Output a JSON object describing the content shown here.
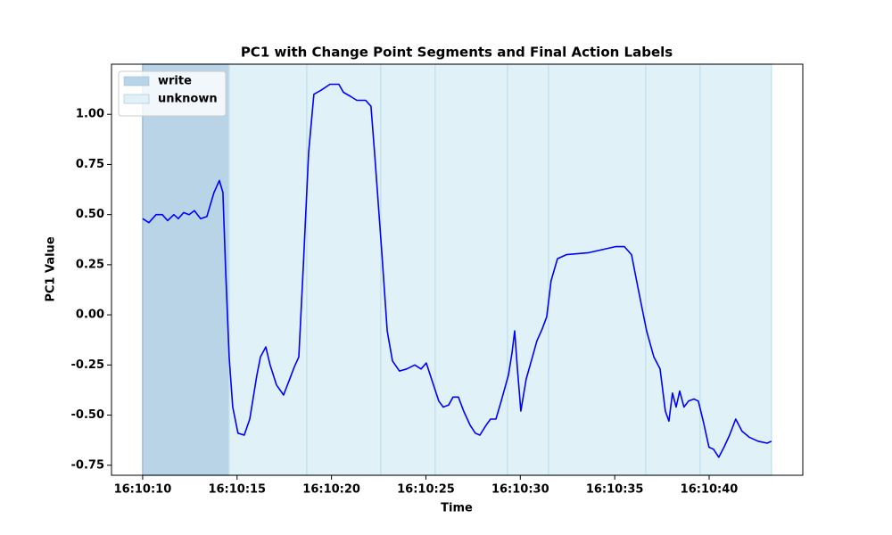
{
  "chart_data": {
    "type": "line",
    "title": "PC1 with Change Point Segments and Final Action Labels",
    "xlabel": "Time",
    "ylabel": "PC1 Value",
    "x": [
      "16:10:10.00",
      "16:10:10.33",
      "16:10:10.71",
      "16:10:11.04",
      "16:10:11.32",
      "16:10:11.65",
      "16:10:11.89",
      "16:10:12.17",
      "16:10:12.46",
      "16:10:12.74",
      "16:10:13.07",
      "16:10:13.40",
      "16:10:13.78",
      "16:10:14.06",
      "16:10:14.25",
      "16:10:14.39",
      "16:10:14.58",
      "16:10:14.77",
      "16:10:15.05",
      "16:10:15.38",
      "16:10:15.67",
      "16:10:16.05",
      "16:10:16.24",
      "16:10:16.52",
      "16:10:16.75",
      "16:10:17.09",
      "16:10:17.46",
      "16:10:17.79",
      "16:10:18.03",
      "16:10:18.27",
      "16:10:18.50",
      "16:10:18.79",
      "16:10:19.07",
      "16:10:19.45",
      "16:10:19.92",
      "16:10:20.39",
      "16:10:20.63",
      "16:10:21.00",
      "16:10:21.34",
      "16:10:21.81",
      "16:10:22.09",
      "16:10:22.28",
      "16:10:22.66",
      "16:10:22.95",
      "16:10:23.23",
      "16:10:23.60",
      "16:10:23.98",
      "16:10:24.41",
      "16:10:24.74",
      "16:10:25.02",
      "16:10:25.30",
      "16:10:25.68",
      "16:10:25.92",
      "16:10:26.20",
      "16:10:26.44",
      "16:10:26.72",
      "16:10:27.00",
      "16:10:27.34",
      "16:10:27.62",
      "16:10:27.86",
      "16:10:28.19",
      "16:10:28.42",
      "16:10:28.71",
      "16:10:28.99",
      "16:10:29.37",
      "16:10:29.56",
      "16:10:29.70",
      "16:10:29.84",
      "16:10:30.03",
      "16:10:30.31",
      "16:10:30.64",
      "16:10:30.88",
      "16:10:31.16",
      "16:10:31.40",
      "16:10:31.63",
      "16:10:31.97",
      "16:10:32.44",
      "16:10:33.62",
      "16:10:35.04",
      "16:10:35.51",
      "16:10:35.89",
      "16:10:36.22",
      "16:10:36.69",
      "16:10:37.07",
      "16:10:37.40",
      "16:10:37.68",
      "16:10:37.87",
      "16:10:38.06",
      "16:10:38.25",
      "16:10:38.44",
      "16:10:38.67",
      "16:10:38.91",
      "16:10:39.19",
      "16:10:39.43",
      "16:10:39.71",
      "16:10:39.99",
      "16:10:40.23",
      "16:10:40.51",
      "16:10:40.79",
      "16:10:41.08",
      "16:10:41.41",
      "16:10:41.74",
      "16:10:42.12",
      "16:10:42.59",
      "16:10:43.07",
      "16:10:43.30"
    ],
    "series": [
      {
        "color": "#0000ff",
        "values": [
          0.48,
          0.46,
          0.5,
          0.5,
          0.47,
          0.5,
          0.48,
          0.51,
          0.5,
          0.52,
          0.48,
          0.49,
          0.61,
          0.67,
          0.61,
          0.23,
          -0.21,
          -0.46,
          -0.59,
          -0.6,
          -0.52,
          -0.3,
          -0.21,
          -0.16,
          -0.25,
          -0.35,
          -0.4,
          -0.32,
          -0.26,
          -0.21,
          0.23,
          0.81,
          1.1,
          1.12,
          1.15,
          1.15,
          1.11,
          1.09,
          1.07,
          1.07,
          1.04,
          0.81,
          0.32,
          -0.08,
          -0.23,
          -0.28,
          -0.27,
          -0.25,
          -0.27,
          -0.24,
          -0.32,
          -0.43,
          -0.46,
          -0.45,
          -0.41,
          -0.41,
          -0.48,
          -0.55,
          -0.59,
          -0.6,
          -0.55,
          -0.52,
          -0.52,
          -0.43,
          -0.3,
          -0.19,
          -0.08,
          -0.26,
          -0.48,
          -0.32,
          -0.21,
          -0.13,
          -0.07,
          -0.01,
          0.17,
          0.28,
          0.3,
          0.31,
          0.34,
          0.34,
          0.3,
          0.14,
          -0.08,
          -0.21,
          -0.27,
          -0.48,
          -0.53,
          -0.39,
          -0.46,
          -0.38,
          -0.46,
          -0.43,
          -0.42,
          -0.43,
          -0.54,
          -0.66,
          -0.67,
          -0.71,
          -0.66,
          -0.6,
          -0.52,
          -0.58,
          -0.61,
          -0.63,
          -0.64,
          -0.63
        ]
      }
    ],
    "spans": [
      {
        "name": "write",
        "color": "#b8d4e6",
        "start": "16:10:10.00",
        "end": "16:10:14.58"
      },
      {
        "name": "unknown",
        "color": "#e0f1f7",
        "start": "16:10:14.58",
        "end": "16:10:18.69"
      },
      {
        "name": "unknown",
        "color": "#e0f1f7",
        "start": "16:10:18.69",
        "end": "16:10:22.61"
      },
      {
        "name": "unknown",
        "color": "#e0f1f7",
        "start": "16:10:22.61",
        "end": "16:10:25.49"
      },
      {
        "name": "unknown",
        "color": "#e0f1f7",
        "start": "16:10:25.49",
        "end": "16:10:29.32"
      },
      {
        "name": "unknown",
        "color": "#e0f1f7",
        "start": "16:10:29.32",
        "end": "16:10:31.49"
      },
      {
        "name": "unknown",
        "color": "#e0f1f7",
        "start": "16:10:31.49",
        "end": "16:10:36.64"
      },
      {
        "name": "unknown",
        "color": "#e0f1f7",
        "start": "16:10:36.64",
        "end": "16:10:39.52"
      },
      {
        "name": "unknown",
        "color": "#e0f1f7",
        "start": "16:10:39.52",
        "end": "16:10:43.30"
      }
    ],
    "xlim": [
      "16:10:08.35",
      "16:10:44.96"
    ],
    "xticks": [
      "16:10:10",
      "16:10:15",
      "16:10:20",
      "16:10:25",
      "16:10:30",
      "16:10:35",
      "16:10:40"
    ],
    "ylim": [
      -0.8,
      1.25
    ],
    "yticks": [
      -0.75,
      {
        "value": -0.5,
        "label": "-0.50"
      },
      -0.25,
      {
        "value": 0,
        "label": "0.00"
      },
      0.25,
      {
        "value": 0.5,
        "label": "0.50"
      },
      0.75,
      {
        "value": 1,
        "label": "1.00"
      }
    ],
    "legend": "upper left"
  }
}
